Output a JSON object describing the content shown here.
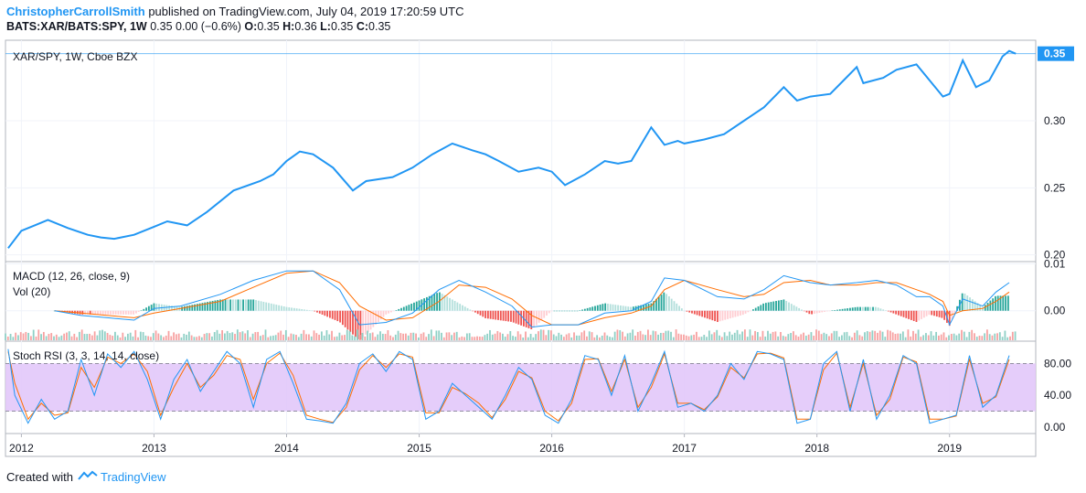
{
  "header": {
    "author": "ChristopherCarrollSmith",
    "published": "published on TradingView.com, July 04, 2019 17:20:59 UTC",
    "symbol": "BATS:XAR/BATS:SPY, 1W",
    "change": "0.35 0.00 (−0.6%)",
    "o_label": "O:",
    "o_val": "0.35",
    "h_label": "H:",
    "h_val": "0.36",
    "l_label": "L:",
    "l_val": "0.35",
    "c_label": "C:",
    "c_val": "0.35"
  },
  "footer": {
    "created_with": "Created with",
    "brand": "TradingView",
    "logo_icon": "tradingview-logo-icon"
  },
  "colors": {
    "price": "#2196f3",
    "macd": "#2196f3",
    "signal": "#ff6d00",
    "hist_up_strong": "#26a69a",
    "hist_up_weak": "#b2dfdb",
    "hist_down_strong": "#ef5350",
    "hist_down_weak": "#ffcdd2",
    "vol_up": "#8fd0c6",
    "vol_down": "#f7a2a2",
    "k": "#2196f3",
    "d": "#ff6d00",
    "band": "#e1c4f9",
    "last_price_tag": "#2196f3"
  },
  "chart_data": [
    {
      "type": "line",
      "title": "XAR/SPY, 1W, Cboe BZX",
      "series_name": "XAR/SPY",
      "x_unit": "year",
      "x": [
        2011.9,
        2012.0,
        2012.1,
        2012.2,
        2012.35,
        2012.5,
        2012.6,
        2012.7,
        2012.85,
        2013.0,
        2013.1,
        2013.25,
        2013.4,
        2013.6,
        2013.8,
        2013.9,
        2014.0,
        2014.1,
        2014.2,
        2014.35,
        2014.5,
        2014.6,
        2014.8,
        2014.95,
        2015.1,
        2015.25,
        2015.4,
        2015.5,
        2015.6,
        2015.75,
        2015.9,
        2016.0,
        2016.1,
        2016.25,
        2016.4,
        2016.5,
        2016.6,
        2016.75,
        2016.85,
        2016.95,
        2017.0,
        2017.15,
        2017.3,
        2017.45,
        2017.6,
        2017.75,
        2017.85,
        2017.95,
        2018.1,
        2018.2,
        2018.3,
        2018.35,
        2018.5,
        2018.6,
        2018.75,
        2018.85,
        2018.95,
        2019.0,
        2019.1,
        2019.2,
        2019.3,
        2019.4,
        2019.45,
        2019.5
      ],
      "y": [
        0.205,
        0.218,
        0.222,
        0.226,
        0.22,
        0.215,
        0.213,
        0.212,
        0.215,
        0.221,
        0.225,
        0.222,
        0.232,
        0.248,
        0.255,
        0.26,
        0.27,
        0.277,
        0.275,
        0.265,
        0.248,
        0.255,
        0.258,
        0.265,
        0.275,
        0.283,
        0.278,
        0.275,
        0.27,
        0.262,
        0.265,
        0.262,
        0.252,
        0.26,
        0.27,
        0.268,
        0.27,
        0.295,
        0.282,
        0.285,
        0.283,
        0.286,
        0.29,
        0.3,
        0.31,
        0.325,
        0.315,
        0.318,
        0.32,
        0.33,
        0.34,
        0.328,
        0.332,
        0.338,
        0.342,
        0.33,
        0.318,
        0.32,
        0.345,
        0.325,
        0.33,
        0.348,
        0.352,
        0.35
      ],
      "last_value": "0.35",
      "y_ticks": [
        "0.20",
        "0.25",
        "0.30"
      ],
      "ylim": [
        0.195,
        0.36
      ]
    },
    {
      "type": "line",
      "title": "MACD (12, 26, close, 9)",
      "subtitle": "Vol (20)",
      "x_unit": "year",
      "macd": {
        "x": [
          2012.25,
          2012.45,
          2012.65,
          2012.85,
          2013.0,
          2013.2,
          2013.5,
          2013.75,
          2014.0,
          2014.2,
          2014.4,
          2014.55,
          2014.75,
          2014.95,
          2015.15,
          2015.3,
          2015.5,
          2015.7,
          2015.85,
          2016.0,
          2016.2,
          2016.4,
          2016.6,
          2016.75,
          2016.85,
          2017.0,
          2017.25,
          2017.45,
          2017.6,
          2017.75,
          2017.95,
          2018.1,
          2018.3,
          2018.45,
          2018.6,
          2018.75,
          2018.85,
          2018.95,
          2019.0,
          2019.1,
          2019.25,
          2019.35,
          2019.45
        ],
        "y": [
          0.0,
          -0.001,
          -0.0015,
          -0.002,
          0.0005,
          0.001,
          0.0035,
          0.0065,
          0.0085,
          0.0085,
          0.0045,
          -0.003,
          -0.0025,
          -0.0005,
          0.0045,
          0.0065,
          0.004,
          0.001,
          -0.0035,
          -0.003,
          -0.003,
          -0.0005,
          0.0,
          0.002,
          0.007,
          0.0065,
          0.003,
          0.0025,
          0.0045,
          0.0075,
          0.006,
          0.0055,
          0.006,
          0.0065,
          0.0055,
          0.003,
          0.003,
          0.001,
          -0.003,
          0.0025,
          0.001,
          0.004,
          0.006
        ]
      },
      "signal": {
        "x": [
          2012.25,
          2012.45,
          2012.65,
          2012.85,
          2013.0,
          2013.2,
          2013.5,
          2013.75,
          2014.0,
          2014.2,
          2014.4,
          2014.55,
          2014.75,
          2014.95,
          2015.15,
          2015.3,
          2015.5,
          2015.7,
          2015.85,
          2016.0,
          2016.2,
          2016.4,
          2016.6,
          2016.75,
          2016.85,
          2017.0,
          2017.25,
          2017.45,
          2017.6,
          2017.75,
          2017.95,
          2018.1,
          2018.3,
          2018.45,
          2018.6,
          2018.75,
          2018.85,
          2018.95,
          2019.0,
          2019.1,
          2019.25,
          2019.35,
          2019.45
        ],
        "y": [
          0.0,
          -0.0005,
          -0.001,
          -0.0015,
          -0.0005,
          0.0005,
          0.002,
          0.005,
          0.008,
          0.0085,
          0.006,
          0.001,
          -0.002,
          -0.0015,
          0.002,
          0.0055,
          0.005,
          0.0025,
          -0.001,
          -0.003,
          -0.003,
          -0.0015,
          -0.0005,
          0.001,
          0.0045,
          0.0065,
          0.0045,
          0.003,
          0.0035,
          0.006,
          0.0065,
          0.0055,
          0.0055,
          0.006,
          0.006,
          0.0045,
          0.0035,
          0.002,
          -0.001,
          0.0,
          0.0005,
          0.002,
          0.004
        ]
      },
      "y_ticks": [
        "0.00",
        "0.01"
      ],
      "ylim": [
        -0.0065,
        0.0105
      ]
    },
    {
      "type": "line",
      "title": "Stoch RSI (3, 3, 14, 14, close)",
      "x_unit": "year",
      "k": {
        "x": [
          2011.9,
          2011.95,
          2012.05,
          2012.15,
          2012.25,
          2012.35,
          2012.45,
          2012.55,
          2012.65,
          2012.75,
          2012.85,
          2012.95,
          2013.05,
          2013.15,
          2013.25,
          2013.35,
          2013.45,
          2013.55,
          2013.65,
          2013.75,
          2013.85,
          2013.95,
          2014.05,
          2014.15,
          2014.25,
          2014.35,
          2014.45,
          2014.55,
          2014.65,
          2014.75,
          2014.85,
          2014.95,
          2015.05,
          2015.15,
          2015.25,
          2015.35,
          2015.45,
          2015.55,
          2015.65,
          2015.75,
          2015.85,
          2015.95,
          2016.05,
          2016.15,
          2016.25,
          2016.35,
          2016.45,
          2016.55,
          2016.65,
          2016.75,
          2016.85,
          2016.95,
          2017.05,
          2017.15,
          2017.25,
          2017.35,
          2017.45,
          2017.55,
          2017.65,
          2017.75,
          2017.85,
          2017.95,
          2018.05,
          2018.15,
          2018.25,
          2018.35,
          2018.45,
          2018.55,
          2018.65,
          2018.75,
          2018.85,
          2018.95,
          2019.05,
          2019.15,
          2019.25,
          2019.35,
          2019.45
        ],
        "y": [
          98,
          40,
          5,
          35,
          10,
          20,
          85,
          40,
          92,
          75,
          95,
          60,
          10,
          60,
          85,
          45,
          70,
          95,
          80,
          25,
          85,
          95,
          55,
          10,
          8,
          5,
          30,
          80,
          92,
          70,
          95,
          85,
          10,
          20,
          55,
          40,
          25,
          10,
          40,
          75,
          60,
          15,
          5,
          35,
          90,
          85,
          40,
          90,
          20,
          55,
          95,
          25,
          30,
          20,
          40,
          80,
          60,
          95,
          92,
          85,
          5,
          10,
          80,
          95,
          20,
          85,
          10,
          40,
          90,
          80,
          5,
          10,
          15,
          90,
          25,
          40,
          90
        ]
      },
      "d": {
        "x": [
          2011.9,
          2011.95,
          2012.05,
          2012.15,
          2012.25,
          2012.35,
          2012.45,
          2012.55,
          2012.65,
          2012.75,
          2012.85,
          2012.95,
          2013.05,
          2013.15,
          2013.25,
          2013.35,
          2013.45,
          2013.55,
          2013.65,
          2013.75,
          2013.85,
          2013.95,
          2014.05,
          2014.15,
          2014.25,
          2014.35,
          2014.45,
          2014.55,
          2014.65,
          2014.75,
          2014.85,
          2014.95,
          2015.05,
          2015.15,
          2015.25,
          2015.35,
          2015.45,
          2015.55,
          2015.65,
          2015.75,
          2015.85,
          2015.95,
          2016.05,
          2016.15,
          2016.25,
          2016.35,
          2016.45,
          2016.55,
          2016.65,
          2016.75,
          2016.85,
          2016.95,
          2017.05,
          2017.15,
          2017.25,
          2017.35,
          2017.45,
          2017.55,
          2017.65,
          2017.75,
          2017.85,
          2017.95,
          2018.05,
          2018.15,
          2018.25,
          2018.35,
          2018.45,
          2018.55,
          2018.65,
          2018.75,
          2018.85,
          2018.95,
          2019.05,
          2019.15,
          2019.25,
          2019.35,
          2019.45
        ],
        "y": [
          95,
          55,
          10,
          30,
          15,
          18,
          75,
          50,
          88,
          80,
          92,
          70,
          15,
          50,
          80,
          50,
          65,
          90,
          85,
          35,
          80,
          93,
          65,
          15,
          10,
          6,
          25,
          72,
          90,
          75,
          92,
          88,
          18,
          18,
          50,
          42,
          30,
          12,
          35,
          70,
          62,
          20,
          8,
          30,
          85,
          86,
          45,
          85,
          25,
          50,
          92,
          30,
          30,
          22,
          38,
          75,
          62,
          92,
          93,
          87,
          10,
          10,
          72,
          93,
          25,
          80,
          15,
          35,
          88,
          82,
          10,
          10,
          14,
          85,
          30,
          38,
          85
        ]
      },
      "y_ticks": [
        "0.00",
        "40.00",
        "80.00"
      ],
      "band": [
        20,
        80
      ],
      "ylim": [
        -8,
        108
      ]
    }
  ],
  "x_axis": {
    "ticks": [
      "2012",
      "2013",
      "2014",
      "2015",
      "2016",
      "2017",
      "2018",
      "2019"
    ],
    "range": [
      2011.88,
      2019.65
    ]
  }
}
